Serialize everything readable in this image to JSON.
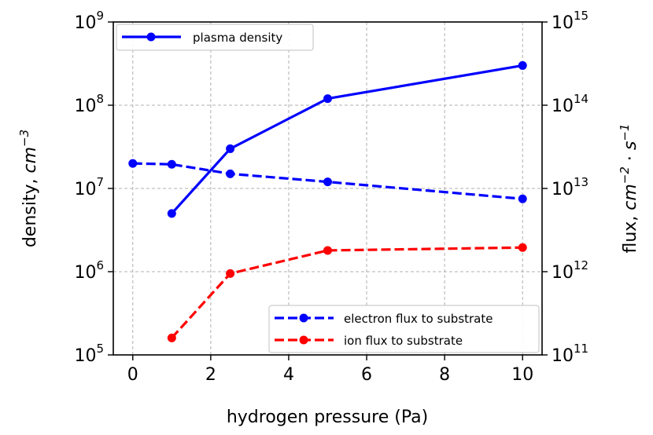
{
  "chart_data": {
    "type": "line",
    "xlabel": "hydrogen pressure (Pa)",
    "xlim": [
      -0.5,
      10.5
    ],
    "xticks": [
      0,
      2,
      4,
      6,
      8,
      10
    ],
    "grid": true,
    "left_axis": {
      "label_prefix": "density, ",
      "label_unit": "cm",
      "label_exp": "−3",
      "scale": "log",
      "ylim": [
        100000,
        1000000000
      ],
      "ticks": [
        {
          "base": "10",
          "exp": "5",
          "value": 100000
        },
        {
          "base": "10",
          "exp": "6",
          "value": 1000000
        },
        {
          "base": "10",
          "exp": "7",
          "value": 10000000
        },
        {
          "base": "10",
          "exp": "8",
          "value": 100000000
        },
        {
          "base": "10",
          "exp": "9",
          "value": 1000000000
        }
      ]
    },
    "right_axis": {
      "label_prefix": "flux, ",
      "label_unit1": "cm",
      "label_exp1": "−2",
      "label_dot": " · ",
      "label_unit2": "s",
      "label_exp2": "−1",
      "scale": "log",
      "ylim": [
        100000000000,
        1000000000000000
      ],
      "ticks": [
        {
          "base": "10",
          "exp": "11",
          "value": 100000000000
        },
        {
          "base": "10",
          "exp": "12",
          "value": 1000000000000
        },
        {
          "base": "10",
          "exp": "13",
          "value": 10000000000000
        },
        {
          "base": "10",
          "exp": "14",
          "value": 100000000000000
        },
        {
          "base": "10",
          "exp": "15",
          "value": 1000000000000000
        }
      ]
    },
    "series": [
      {
        "name": "plasma density",
        "axis": "left",
        "color": "#0000ff",
        "style": "solid",
        "x": [
          1,
          2.5,
          5,
          10
        ],
        "y": [
          5000000,
          30000000,
          120000000,
          300000000
        ]
      },
      {
        "name": "electron flux to substrate",
        "axis": "right",
        "color": "#0000ff",
        "style": "dashed",
        "x": [
          0,
          1,
          2.5,
          5,
          10
        ],
        "y": [
          20000000000000,
          19500000000000,
          15000000000000,
          12000000000000,
          7500000000000
        ]
      },
      {
        "name": "ion flux to substrate",
        "axis": "right",
        "color": "#ff0000",
        "style": "dashed",
        "x": [
          1,
          2.5,
          5,
          10
        ],
        "y": [
          160000000000,
          950000000000,
          1800000000000,
          1950000000000
        ]
      }
    ],
    "legend_left": {
      "placement": "upper-left",
      "entries": [
        "plasma density"
      ]
    },
    "legend_right": {
      "placement": "lower-right",
      "entries": [
        "electron flux to substrate",
        "ion flux to substrate"
      ]
    }
  }
}
